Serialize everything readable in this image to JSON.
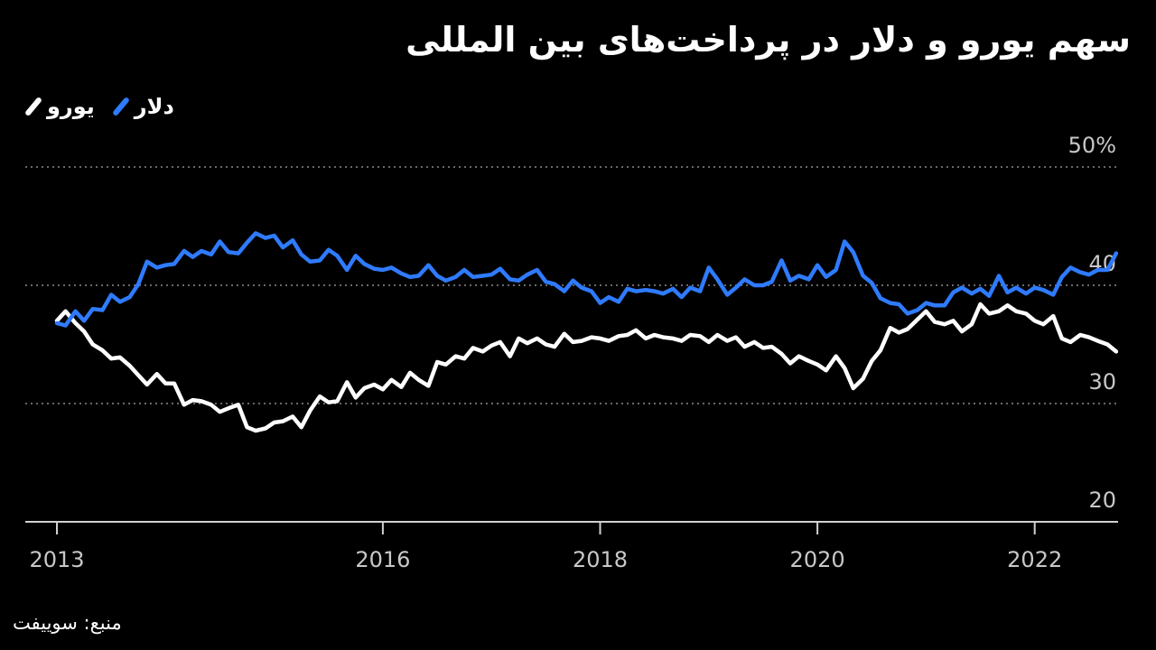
{
  "chart_data": {
    "type": "line",
    "title": "سهم یورو و دلار در پرداخت‌های بین المللی",
    "source": "منبع: سوییفت",
    "ylim": [
      20,
      50
    ],
    "xlim": [
      2013,
      2023.5
    ],
    "y_ticks": [
      {
        "value": 50,
        "label": "50%"
      },
      {
        "value": 40,
        "label": "40"
      },
      {
        "value": 30,
        "label": "30"
      },
      {
        "value": 20,
        "label": "20"
      }
    ],
    "x_ticks": [
      {
        "value": 2013,
        "label": "2013"
      },
      {
        "value": 2016,
        "label": "2016"
      },
      {
        "value": 2018,
        "label": "2018"
      },
      {
        "value": 2020,
        "label": "2020"
      },
      {
        "value": 2022,
        "label": "2022"
      }
    ],
    "grid": "horizontal dotted",
    "legend_position": "top-left",
    "series": [
      {
        "name": "دلار",
        "color": "#2f7bff",
        "points": [
          [
            2013.0,
            36.8
          ],
          [
            2013.08,
            36.6
          ],
          [
            2013.17,
            37.8
          ],
          [
            2013.25,
            37.0
          ],
          [
            2013.33,
            38.0
          ],
          [
            2013.42,
            37.9
          ],
          [
            2013.5,
            39.2
          ],
          [
            2013.58,
            38.6
          ],
          [
            2013.67,
            39.0
          ],
          [
            2013.75,
            40.1
          ],
          [
            2013.83,
            42.0
          ],
          [
            2013.92,
            41.5
          ],
          [
            2014.0,
            41.7
          ],
          [
            2014.08,
            41.8
          ],
          [
            2014.17,
            42.9
          ],
          [
            2014.25,
            42.4
          ],
          [
            2014.33,
            42.9
          ],
          [
            2014.42,
            42.6
          ],
          [
            2014.5,
            43.7
          ],
          [
            2014.58,
            42.8
          ],
          [
            2014.67,
            42.7
          ],
          [
            2014.75,
            43.6
          ],
          [
            2014.83,
            44.4
          ],
          [
            2014.92,
            44.0
          ],
          [
            2015.0,
            44.2
          ],
          [
            2015.08,
            43.2
          ],
          [
            2015.17,
            43.8
          ],
          [
            2015.25,
            42.6
          ],
          [
            2015.33,
            42.0
          ],
          [
            2015.42,
            42.1
          ],
          [
            2015.5,
            43.0
          ],
          [
            2015.58,
            42.5
          ],
          [
            2015.67,
            41.3
          ],
          [
            2015.75,
            42.5
          ],
          [
            2015.83,
            41.8
          ],
          [
            2015.92,
            41.4
          ],
          [
            2016.0,
            41.3
          ],
          [
            2016.08,
            41.5
          ],
          [
            2016.17,
            41.0
          ],
          [
            2016.25,
            40.7
          ],
          [
            2016.33,
            40.8
          ],
          [
            2016.42,
            41.7
          ],
          [
            2016.5,
            40.8
          ],
          [
            2016.58,
            40.4
          ],
          [
            2016.67,
            40.7
          ],
          [
            2016.75,
            41.3
          ],
          [
            2016.83,
            40.7
          ],
          [
            2016.92,
            40.8
          ],
          [
            2017.0,
            40.9
          ],
          [
            2017.08,
            41.4
          ],
          [
            2017.17,
            40.5
          ],
          [
            2017.25,
            40.4
          ],
          [
            2017.33,
            40.9
          ],
          [
            2017.42,
            41.3
          ],
          [
            2017.5,
            40.3
          ],
          [
            2017.58,
            40.1
          ],
          [
            2017.67,
            39.5
          ],
          [
            2017.75,
            40.4
          ],
          [
            2017.83,
            39.8
          ],
          [
            2017.92,
            39.5
          ],
          [
            2018.0,
            38.5
          ],
          [
            2018.08,
            39.0
          ],
          [
            2018.17,
            38.6
          ],
          [
            2018.25,
            39.7
          ],
          [
            2018.33,
            39.5
          ],
          [
            2018.42,
            39.6
          ],
          [
            2018.5,
            39.5
          ],
          [
            2018.58,
            39.3
          ],
          [
            2018.67,
            39.7
          ],
          [
            2018.75,
            39.0
          ],
          [
            2018.83,
            39.8
          ],
          [
            2018.92,
            39.5
          ],
          [
            2019.0,
            41.5
          ],
          [
            2019.08,
            40.5
          ],
          [
            2019.17,
            39.2
          ],
          [
            2019.25,
            39.8
          ],
          [
            2019.33,
            40.5
          ],
          [
            2019.42,
            40.0
          ],
          [
            2019.5,
            40.0
          ],
          [
            2019.58,
            40.3
          ],
          [
            2019.67,
            42.1
          ],
          [
            2019.75,
            40.4
          ],
          [
            2019.83,
            40.8
          ],
          [
            2019.92,
            40.5
          ],
          [
            2020.0,
            41.7
          ],
          [
            2020.08,
            40.7
          ],
          [
            2020.17,
            41.3
          ],
          [
            2020.25,
            43.7
          ],
          [
            2020.33,
            42.8
          ],
          [
            2020.42,
            40.8
          ],
          [
            2020.5,
            40.2
          ],
          [
            2020.58,
            38.9
          ],
          [
            2020.67,
            38.5
          ],
          [
            2020.75,
            38.4
          ],
          [
            2020.83,
            37.6
          ],
          [
            2020.92,
            37.9
          ],
          [
            2021.0,
            38.5
          ],
          [
            2021.08,
            38.3
          ],
          [
            2021.17,
            38.3
          ],
          [
            2021.25,
            39.4
          ],
          [
            2021.33,
            39.8
          ],
          [
            2021.42,
            39.3
          ],
          [
            2021.5,
            39.7
          ],
          [
            2021.58,
            39.1
          ],
          [
            2021.67,
            40.8
          ],
          [
            2021.75,
            39.4
          ],
          [
            2021.83,
            39.8
          ],
          [
            2021.92,
            39.3
          ],
          [
            2022.0,
            39.8
          ],
          [
            2022.08,
            39.6
          ],
          [
            2022.17,
            39.2
          ],
          [
            2022.25,
            40.7
          ],
          [
            2022.33,
            41.5
          ],
          [
            2022.42,
            41.1
          ],
          [
            2022.5,
            40.9
          ],
          [
            2022.58,
            41.3
          ],
          [
            2022.67,
            41.3
          ],
          [
            2022.75,
            42.7
          ]
        ]
      },
      {
        "name": "یورو",
        "color": "#ffffff",
        "points": [
          [
            2013.0,
            37.0
          ],
          [
            2013.08,
            37.8
          ],
          [
            2013.17,
            36.8
          ],
          [
            2013.25,
            36.1
          ],
          [
            2013.33,
            35.0
          ],
          [
            2013.42,
            34.5
          ],
          [
            2013.5,
            33.8
          ],
          [
            2013.58,
            33.9
          ],
          [
            2013.67,
            33.2
          ],
          [
            2013.75,
            32.4
          ],
          [
            2013.83,
            31.6
          ],
          [
            2013.92,
            32.5
          ],
          [
            2014.0,
            31.7
          ],
          [
            2014.08,
            31.7
          ],
          [
            2014.17,
            29.9
          ],
          [
            2014.25,
            30.3
          ],
          [
            2014.33,
            30.2
          ],
          [
            2014.42,
            29.9
          ],
          [
            2014.5,
            29.3
          ],
          [
            2014.58,
            29.6
          ],
          [
            2014.67,
            29.9
          ],
          [
            2014.75,
            28.0
          ],
          [
            2014.83,
            27.7
          ],
          [
            2014.92,
            27.9
          ],
          [
            2015.0,
            28.4
          ],
          [
            2015.08,
            28.5
          ],
          [
            2015.17,
            28.9
          ],
          [
            2015.25,
            28.0
          ],
          [
            2015.33,
            29.4
          ],
          [
            2015.42,
            30.6
          ],
          [
            2015.5,
            30.1
          ],
          [
            2015.58,
            30.2
          ],
          [
            2015.67,
            31.8
          ],
          [
            2015.75,
            30.5
          ],
          [
            2015.83,
            31.3
          ],
          [
            2015.92,
            31.6
          ],
          [
            2016.0,
            31.2
          ],
          [
            2016.08,
            32.0
          ],
          [
            2016.17,
            31.4
          ],
          [
            2016.25,
            32.6
          ],
          [
            2016.33,
            32.0
          ],
          [
            2016.42,
            31.5
          ],
          [
            2016.5,
            33.5
          ],
          [
            2016.58,
            33.3
          ],
          [
            2016.67,
            34.0
          ],
          [
            2016.75,
            33.8
          ],
          [
            2016.83,
            34.7
          ],
          [
            2016.92,
            34.4
          ],
          [
            2017.0,
            34.9
          ],
          [
            2017.08,
            35.2
          ],
          [
            2017.17,
            34.0
          ],
          [
            2017.25,
            35.5
          ],
          [
            2017.33,
            35.1
          ],
          [
            2017.42,
            35.5
          ],
          [
            2017.5,
            35.0
          ],
          [
            2017.58,
            34.8
          ],
          [
            2017.67,
            35.9
          ],
          [
            2017.75,
            35.2
          ],
          [
            2017.83,
            35.3
          ],
          [
            2017.92,
            35.6
          ],
          [
            2018.0,
            35.5
          ],
          [
            2018.08,
            35.3
          ],
          [
            2018.17,
            35.7
          ],
          [
            2018.25,
            35.8
          ],
          [
            2018.33,
            36.2
          ],
          [
            2018.42,
            35.5
          ],
          [
            2018.5,
            35.8
          ],
          [
            2018.58,
            35.6
          ],
          [
            2018.67,
            35.5
          ],
          [
            2018.75,
            35.3
          ],
          [
            2018.83,
            35.8
          ],
          [
            2018.92,
            35.7
          ],
          [
            2019.0,
            35.2
          ],
          [
            2019.08,
            35.8
          ],
          [
            2019.17,
            35.3
          ],
          [
            2019.25,
            35.6
          ],
          [
            2019.33,
            34.8
          ],
          [
            2019.42,
            35.2
          ],
          [
            2019.5,
            34.7
          ],
          [
            2019.58,
            34.8
          ],
          [
            2019.67,
            34.2
          ],
          [
            2019.75,
            33.4
          ],
          [
            2019.83,
            34.0
          ],
          [
            2019.92,
            33.6
          ],
          [
            2020.0,
            33.3
          ],
          [
            2020.08,
            32.8
          ],
          [
            2020.17,
            34.0
          ],
          [
            2020.25,
            33.0
          ],
          [
            2020.33,
            31.3
          ],
          [
            2020.42,
            32.1
          ],
          [
            2020.5,
            33.6
          ],
          [
            2020.58,
            34.5
          ],
          [
            2020.67,
            36.4
          ],
          [
            2020.75,
            36.0
          ],
          [
            2020.83,
            36.3
          ],
          [
            2020.92,
            37.1
          ],
          [
            2021.0,
            37.8
          ],
          [
            2021.08,
            36.9
          ],
          [
            2021.17,
            36.7
          ],
          [
            2021.25,
            37.0
          ],
          [
            2021.33,
            36.1
          ],
          [
            2021.42,
            36.7
          ],
          [
            2021.5,
            38.4
          ],
          [
            2021.58,
            37.6
          ],
          [
            2021.67,
            37.8
          ],
          [
            2021.75,
            38.3
          ],
          [
            2021.83,
            37.8
          ],
          [
            2021.92,
            37.6
          ],
          [
            2022.0,
            37.0
          ],
          [
            2022.08,
            36.7
          ],
          [
            2022.17,
            37.4
          ],
          [
            2022.25,
            35.5
          ],
          [
            2022.33,
            35.2
          ],
          [
            2022.42,
            35.8
          ],
          [
            2022.5,
            35.6
          ],
          [
            2022.58,
            35.3
          ],
          [
            2022.67,
            35.0
          ],
          [
            2022.75,
            34.4
          ]
        ]
      }
    ]
  }
}
